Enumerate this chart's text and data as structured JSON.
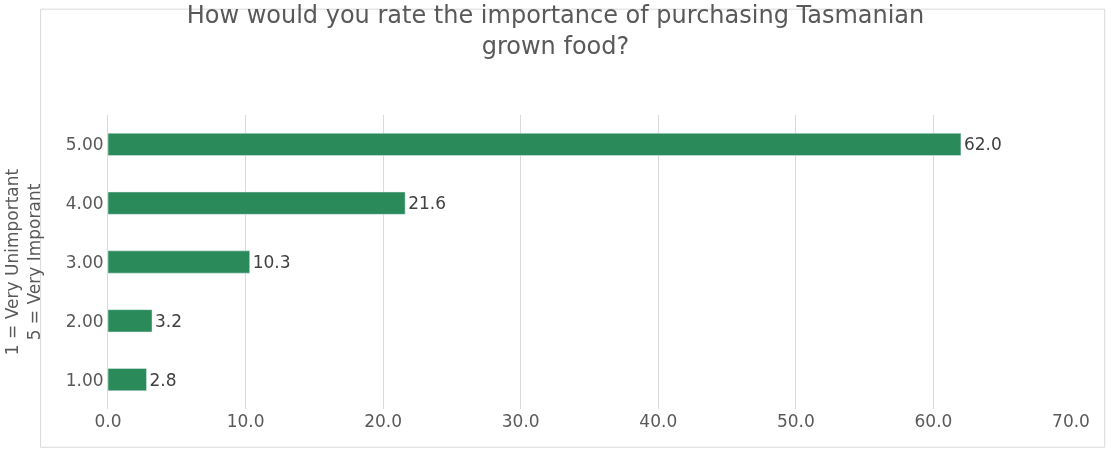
{
  "chart_data": {
    "type": "bar",
    "orientation": "horizontal",
    "title": "How would you rate the importance of purchasing Tasmanian\ngrown food?",
    "ylabel": "1 = Very Unimportant\n5 = Very Imporant",
    "categories": [
      "5.00",
      "4.00",
      "3.00",
      "2.00",
      "1.00"
    ],
    "values": [
      62.0,
      21.6,
      10.3,
      3.2,
      2.8
    ],
    "value_labels": [
      "62.0",
      "21.6",
      "10.3",
      "3.2",
      "2.8"
    ],
    "color": "#2a8a5a",
    "xlim": [
      0,
      70
    ],
    "xticks": [
      {
        "value": 0,
        "label": "0.0"
      },
      {
        "value": 10,
        "label": "10.0"
      },
      {
        "value": 20,
        "label": "20.0"
      },
      {
        "value": 30,
        "label": "30.0"
      },
      {
        "value": 40,
        "label": "40.0"
      },
      {
        "value": 50,
        "label": "50.0"
      },
      {
        "value": 60,
        "label": "60.0"
      },
      {
        "value": 70,
        "label": "70.0"
      }
    ],
    "grid": "x",
    "legend": false
  }
}
